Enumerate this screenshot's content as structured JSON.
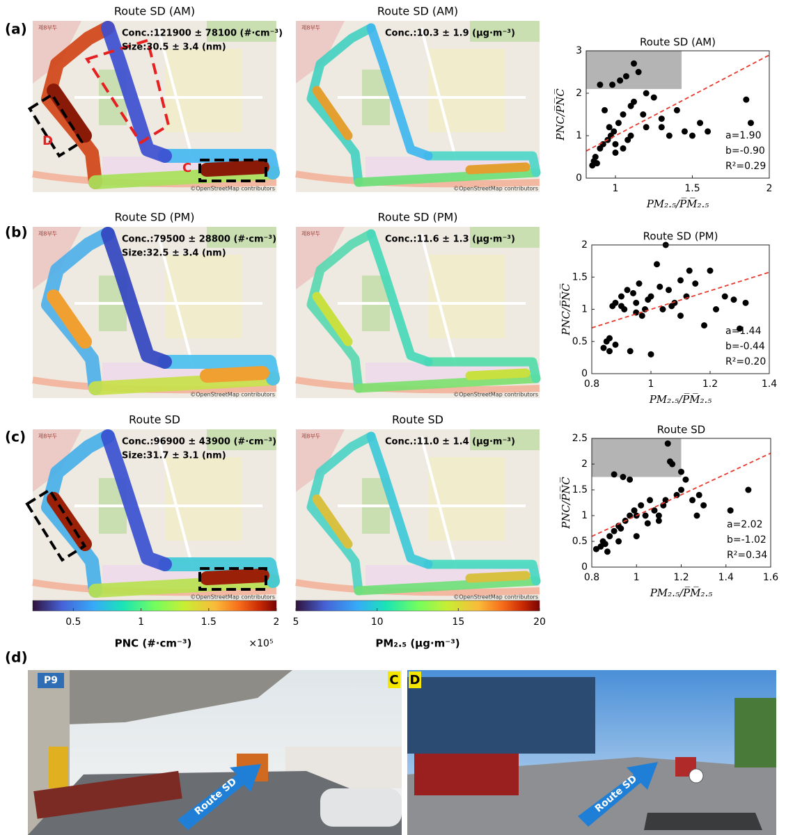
{
  "panel_labels": [
    "(a)",
    "(b)",
    "(c)",
    "(d)"
  ],
  "map_labels": {
    "credit": "©OpenStreetMap contributors",
    "pier": "제8부두"
  },
  "maps": [
    {
      "title": "Route SD (AM)",
      "annotations": [
        "Conc.:121900 ± 78100 (#·cm⁻³)",
        "Size:30.5 ± 3.4 (nm)"
      ],
      "markers": [
        "D",
        "C"
      ]
    },
    {
      "title": "Route SD (AM)",
      "annotations": [
        "Conc.:10.3 ± 1.9 (μg·m⁻³)"
      ]
    },
    {
      "title": "Route SD (PM)",
      "annotations": [
        "Conc.:79500 ± 28800 (#·cm⁻³)",
        "Size:32.5 ± 3.4 (nm)"
      ]
    },
    {
      "title": "Route SD (PM)",
      "annotations": [
        "Conc.:11.6 ± 1.3 (μg·m⁻³)"
      ]
    },
    {
      "title": "Route SD",
      "annotations": [
        "Conc.:96900 ± 43900 (#·cm⁻³)",
        "Size:31.7 ± 3.1 (nm)"
      ]
    },
    {
      "title": "Route SD",
      "annotations": [
        "Conc.:11.0 ± 1.4 (μg·m⁻³)"
      ]
    }
  ],
  "colorbars": [
    {
      "label": "PNC (#·cm⁻³)",
      "multiplier": "×10⁵",
      "xlim": [
        0.2,
        2
      ],
      "xticks": [
        0.5,
        1,
        1.5,
        2
      ]
    },
    {
      "label": "PM₂.₅ (μg·m⁻³)",
      "xlim": [
        5,
        20
      ],
      "xticks": [
        5,
        10,
        15,
        20
      ]
    }
  ],
  "chart_data": [
    {
      "type": "scatter",
      "title": "Route SD (AM)",
      "x_label": "PM₂.₅/P̅M̅₂.₅",
      "y_label": "PNC/P̅N̅C̅",
      "x": [
        0.85,
        0.86,
        0.87,
        0.88,
        0.9,
        0.92,
        0.95,
        0.97,
        0.99,
        1.0,
        1.02,
        1.05,
        1.08,
        1.1,
        1.12,
        1.15,
        1.2,
        1.25,
        1.3,
        1.35,
        1.4,
        1.45,
        1.5,
        1.55,
        1.6,
        1.85,
        1.88,
        0.98,
        1.03,
        1.07,
        1.12,
        1.18,
        0.93,
        0.96,
        1.0,
        1.05,
        1.1,
        1.2,
        1.3,
        0.9
      ],
      "y": [
        0.3,
        0.4,
        0.5,
        0.35,
        0.7,
        0.8,
        0.9,
        1.0,
        1.1,
        0.8,
        1.3,
        1.5,
        0.9,
        1.7,
        2.7,
        2.5,
        1.2,
        1.9,
        1.4,
        1.0,
        1.6,
        1.1,
        1.0,
        1.3,
        1.1,
        1.85,
        1.3,
        2.2,
        2.3,
        2.4,
        1.8,
        1.5,
        1.6,
        1.2,
        0.6,
        0.7,
        1.0,
        2.0,
        1.2,
        2.2
      ],
      "xlim": [
        0.81,
        2
      ],
      "ylim": [
        0,
        3
      ],
      "xticks": [
        1,
        1.5,
        2
      ],
      "yticks": [
        0,
        1,
        2,
        3
      ],
      "color": "#000000",
      "fit": {
        "slope": 1.9,
        "intercept": -0.9,
        "color": "#e8392b"
      },
      "highlight": {
        "x": [
          0.81,
          1.43
        ],
        "y": [
          2.1,
          3
        ],
        "color": "#b4b4b4"
      },
      "annotations": [
        "a=1.90",
        "b=-0.90",
        "R²=0.29"
      ]
    },
    {
      "type": "scatter",
      "title": "Route SD (PM)",
      "x_label": "PM₂.₅/P̅M̅₂.₅",
      "y_label": "PNC/P̅N̅C̅",
      "x": [
        0.84,
        0.85,
        0.86,
        0.87,
        0.88,
        0.9,
        0.92,
        0.93,
        0.95,
        0.96,
        0.98,
        1.0,
        1.02,
        1.04,
        1.06,
        1.08,
        1.1,
        1.12,
        1.15,
        1.18,
        1.2,
        1.22,
        1.25,
        1.28,
        1.3,
        1.32,
        0.86,
        0.9,
        0.94,
        0.97,
        1.0,
        1.03,
        1.07,
        0.88,
        0.91,
        0.95,
        0.99,
        1.05,
        1.1,
        1.13
      ],
      "y": [
        0.4,
        0.5,
        0.35,
        1.05,
        0.45,
        1.2,
        1.3,
        0.35,
        1.1,
        1.4,
        1.0,
        1.2,
        1.7,
        1.0,
        1.3,
        1.1,
        0.9,
        1.2,
        1.4,
        0.75,
        1.6,
        1.0,
        1.2,
        1.15,
        0.7,
        1.1,
        0.55,
        1.05,
        1.25,
        0.9,
        0.3,
        1.35,
        1.05,
        1.1,
        1.0,
        0.95,
        1.15,
        2.0,
        1.45,
        1.6
      ],
      "xlim": [
        0.8,
        1.4
      ],
      "ylim": [
        0,
        2
      ],
      "xticks": [
        0.8,
        1,
        1.2,
        1.4
      ],
      "yticks": [
        0,
        0.5,
        1,
        1.5,
        2
      ],
      "color": "#000000",
      "fit": {
        "slope": 1.44,
        "intercept": -0.44,
        "color": "#e8392b"
      },
      "annotations": [
        "a=1.44",
        "b=-0.44",
        "R²=0.20"
      ]
    },
    {
      "type": "scatter",
      "title": "Route SD",
      "x_label": "PM₂.₅/P̅M̅₂.₅",
      "y_label": "PNC/P̅N̅C̅",
      "x": [
        0.82,
        0.84,
        0.85,
        0.86,
        0.88,
        0.9,
        0.92,
        0.93,
        0.95,
        0.97,
        0.99,
        1.0,
        1.02,
        1.04,
        1.06,
        1.08,
        1.1,
        1.12,
        1.14,
        1.15,
        1.18,
        1.2,
        1.22,
        1.25,
        1.28,
        1.3,
        1.42,
        1.5,
        0.9,
        0.94,
        0.97,
        1.0,
        1.13,
        1.16,
        0.87,
        0.92,
        1.05,
        1.1,
        1.2,
        1.27
      ],
      "y": [
        0.35,
        0.4,
        0.5,
        0.45,
        0.6,
        0.7,
        0.8,
        0.75,
        0.9,
        1.0,
        1.1,
        0.6,
        1.2,
        1.0,
        1.3,
        1.1,
        0.9,
        1.2,
        2.4,
        2.05,
        1.4,
        1.5,
        1.7,
        1.3,
        1.4,
        1.2,
        1.1,
        1.5,
        1.8,
        1.75,
        1.7,
        1.0,
        1.3,
        2.0,
        0.3,
        0.5,
        0.85,
        1.0,
        1.85,
        1.0
      ],
      "xlim": [
        0.8,
        1.6
      ],
      "ylim": [
        0,
        2.5
      ],
      "xticks": [
        0.8,
        1,
        1.2,
        1.4,
        1.6
      ],
      "yticks": [
        0,
        0.5,
        1,
        1.5,
        2,
        2.5
      ],
      "color": "#000000",
      "fit": {
        "slope": 2.02,
        "intercept": -1.02,
        "color": "#e8392b"
      },
      "highlight": {
        "x": [
          0.8,
          1.2
        ],
        "y": [
          1.75,
          2.5
        ],
        "color": "#b4b4b4"
      },
      "annotations": [
        "a=2.02",
        "b=-1.02",
        "R²=0.34"
      ]
    }
  ],
  "photos": [
    {
      "corner_label": "C",
      "sign": "P9",
      "arrow": "Route SD"
    },
    {
      "corner_label": "D",
      "arrow": "Route SD"
    }
  ]
}
